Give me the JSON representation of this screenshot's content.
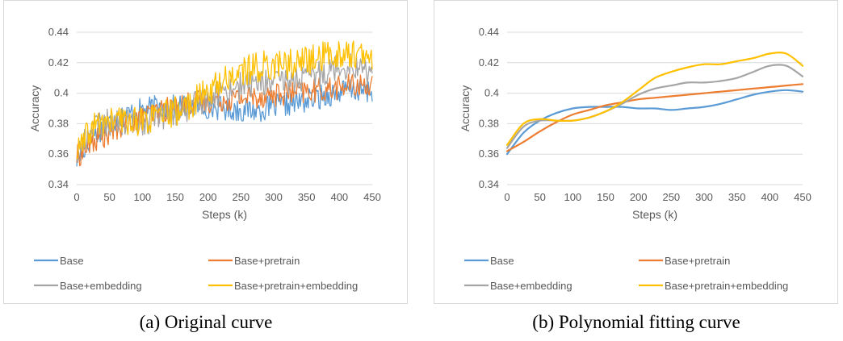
{
  "figures": [
    {
      "caption": "(a) Original curve",
      "chart_data": {
        "type": "line",
        "title": "",
        "xlabel": "Steps (k)",
        "ylabel": "Accuracy",
        "xlim": [
          0,
          450
        ],
        "ylim": [
          0.34,
          0.44
        ],
        "xticks": [
          0,
          50,
          100,
          150,
          200,
          250,
          300,
          350,
          400,
          450
        ],
        "yticks": [
          0.34,
          0.36,
          0.38,
          0.4,
          0.42,
          0.44
        ],
        "ytick_labels": [
          "0.34",
          "0.36",
          "0.38",
          "0.4",
          "0.42",
          "0.44"
        ],
        "grid": true,
        "legend_position": "bottom",
        "noisy": true,
        "x": [
          0,
          25,
          50,
          75,
          100,
          125,
          150,
          175,
          200,
          225,
          250,
          275,
          300,
          325,
          350,
          375,
          400,
          425,
          450
        ],
        "series": [
          {
            "name": "Base",
            "color": "#5b9bd5",
            "values": [
              0.356,
              0.372,
              0.381,
              0.386,
              0.389,
              0.391,
              0.391,
              0.392,
              0.391,
              0.39,
              0.389,
              0.389,
              0.391,
              0.393,
              0.395,
              0.398,
              0.401,
              0.402,
              0.401
            ]
          },
          {
            "name": "Base+pretrain",
            "color": "#ed7d31",
            "values": [
              0.358,
              0.368,
              0.374,
              0.38,
              0.384,
              0.388,
              0.391,
              0.394,
              0.395,
              0.396,
              0.397,
              0.398,
              0.399,
              0.4,
              0.401,
              0.402,
              0.404,
              0.405,
              0.406
            ]
          },
          {
            "name": "Base+embedding",
            "color": "#a5a5a5",
            "values": [
              0.36,
              0.378,
              0.381,
              0.381,
              0.381,
              0.384,
              0.387,
              0.391,
              0.397,
              0.402,
              0.405,
              0.407,
              0.407,
              0.408,
              0.41,
              0.414,
              0.418,
              0.418,
              0.412
            ]
          },
          {
            "name": "Base+pretrain+embedding",
            "color": "#ffc000",
            "values": [
              0.36,
              0.378,
              0.382,
              0.382,
              0.382,
              0.384,
              0.388,
              0.393,
              0.401,
              0.409,
              0.414,
              0.417,
              0.419,
              0.419,
              0.421,
              0.424,
              0.426,
              0.426,
              0.42
            ]
          }
        ]
      }
    },
    {
      "caption": "(b) Polynomial fitting curve",
      "chart_data": {
        "type": "line",
        "title": "",
        "xlabel": "Steps (k)",
        "ylabel": "Accuracy",
        "xlim": [
          0,
          450
        ],
        "ylim": [
          0.34,
          0.44
        ],
        "xticks": [
          0,
          50,
          100,
          150,
          200,
          250,
          300,
          350,
          400,
          450
        ],
        "yticks": [
          0.34,
          0.36,
          0.38,
          0.4,
          0.42,
          0.44
        ],
        "ytick_labels": [
          "0.34",
          "0.36",
          "0.38",
          "0.4",
          "0.42",
          "0.44"
        ],
        "grid": true,
        "legend_position": "bottom",
        "noisy": false,
        "x": [
          0,
          25,
          50,
          75,
          100,
          125,
          150,
          175,
          200,
          225,
          250,
          275,
          300,
          325,
          350,
          375,
          400,
          425,
          450
        ],
        "series": [
          {
            "name": "Base",
            "color": "#5b9bd5",
            "values": [
              0.36,
              0.374,
              0.382,
              0.387,
              0.39,
              0.391,
              0.391,
              0.391,
              0.39,
              0.39,
              0.389,
              0.39,
              0.391,
              0.393,
              0.396,
              0.399,
              0.401,
              0.402,
              0.401
            ]
          },
          {
            "name": "Base+pretrain",
            "color": "#ed7d31",
            "values": [
              0.362,
              0.368,
              0.375,
              0.381,
              0.386,
              0.389,
              0.392,
              0.394,
              0.396,
              0.397,
              0.398,
              0.399,
              0.4,
              0.401,
              0.402,
              0.403,
              0.404,
              0.405,
              0.406
            ]
          },
          {
            "name": "Base+embedding",
            "color": "#a5a5a5",
            "values": [
              0.364,
              0.378,
              0.382,
              0.382,
              0.382,
              0.384,
              0.388,
              0.393,
              0.399,
              0.403,
              0.405,
              0.407,
              0.407,
              0.408,
              0.41,
              0.414,
              0.418,
              0.418,
              0.411
            ]
          },
          {
            "name": "Base+pretrain+embedding",
            "color": "#ffc000",
            "values": [
              0.366,
              0.38,
              0.383,
              0.382,
              0.382,
              0.384,
              0.388,
              0.394,
              0.402,
              0.41,
              0.414,
              0.417,
              0.419,
              0.419,
              0.421,
              0.423,
              0.426,
              0.426,
              0.418
            ]
          }
        ]
      }
    }
  ]
}
